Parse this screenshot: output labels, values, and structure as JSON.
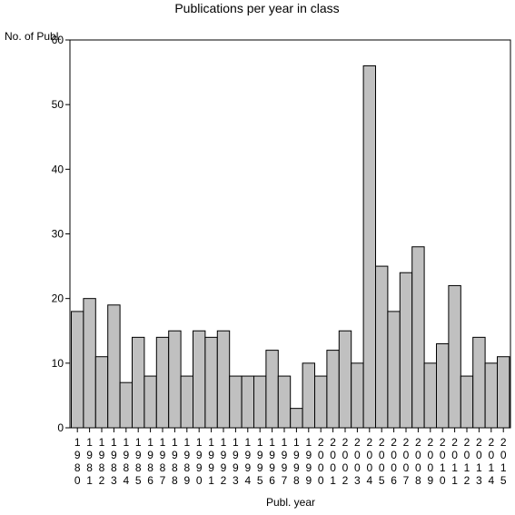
{
  "chart_data": {
    "type": "bar",
    "title": "Publications per year in class",
    "xlabel": "Publ. year",
    "ylabel": "No. of Publ.",
    "ylim": [
      0,
      60
    ],
    "yticks": [
      0,
      10,
      20,
      30,
      40,
      50,
      60
    ],
    "grid": false,
    "bar_color": "#c0c0c0",
    "categories": [
      "1980",
      "1981",
      "1982",
      "1983",
      "1984",
      "1985",
      "1986",
      "1987",
      "1988",
      "1989",
      "1990",
      "1991",
      "1992",
      "1993",
      "1994",
      "1995",
      "1996",
      "1997",
      "1998",
      "1999",
      "2000",
      "2001",
      "2002",
      "2003",
      "2004",
      "2005",
      "2006",
      "2007",
      "2008",
      "2009",
      "2010",
      "2011",
      "2012",
      "2013",
      "2014",
      "2015"
    ],
    "values": [
      18,
      20,
      11,
      19,
      7,
      14,
      8,
      14,
      15,
      8,
      15,
      14,
      15,
      8,
      8,
      8,
      12,
      8,
      3,
      10,
      8,
      12,
      15,
      10,
      56,
      25,
      18,
      24,
      28,
      10,
      13,
      22,
      8,
      14,
      10,
      11
    ]
  }
}
